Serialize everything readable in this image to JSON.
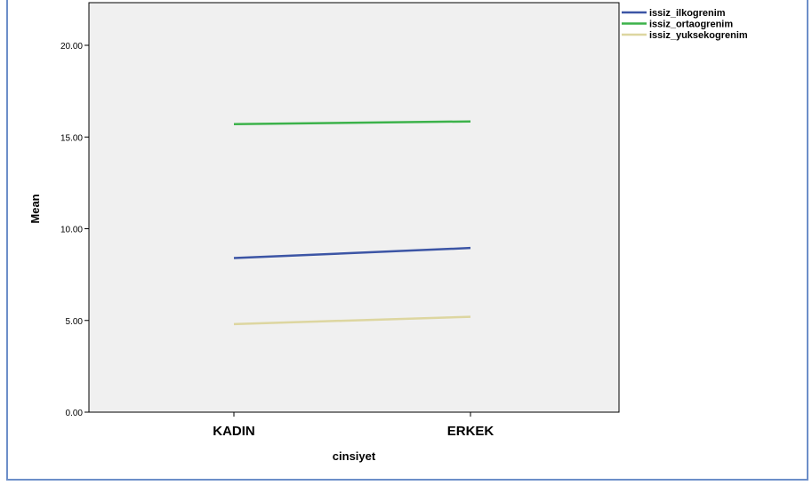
{
  "chart_data": {
    "type": "line",
    "categories": [
      "KADIN",
      "ERKEK"
    ],
    "xlabel": "cinsiyet",
    "ylabel": "Mean",
    "ylim": [
      0,
      22.5
    ],
    "yticks": [
      0,
      5,
      10,
      15,
      20
    ],
    "ytick_labels": [
      "0.00",
      "5.00",
      "10.00",
      "15.00",
      "20.00"
    ],
    "grid": false,
    "legend_position": "top-right",
    "plot_background": "#f0f0f0",
    "series": [
      {
        "name": "issiz_ilkogrenim",
        "color": "#3c55a5",
        "values": [
          8.4,
          8.95
        ]
      },
      {
        "name": "issiz_ortaogrenim",
        "color": "#3cb24a",
        "values": [
          15.7,
          15.85
        ]
      },
      {
        "name": "issiz_yuksekogrenim",
        "color": "#ddd6a0",
        "values": [
          4.8,
          5.2
        ]
      }
    ]
  }
}
